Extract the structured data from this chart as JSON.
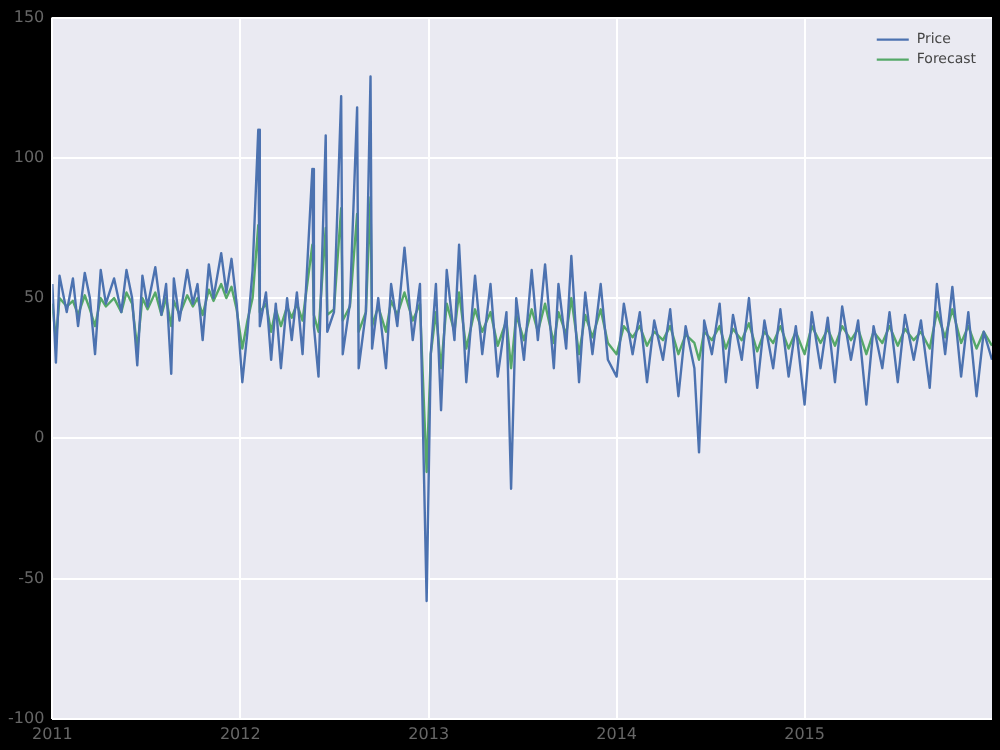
{
  "chart_data": {
    "type": "line",
    "x": [
      "2011-01-01",
      "2011-01-08",
      "2011-01-15",
      "2011-01-29",
      "2011-02-10",
      "2011-02-20",
      "2011-03-05",
      "2011-03-15",
      "2011-03-25",
      "2011-04-05",
      "2011-04-15",
      "2011-05-01",
      "2011-05-15",
      "2011-05-25",
      "2011-06-05",
      "2011-06-15",
      "2011-06-25",
      "2011-07-05",
      "2011-07-20",
      "2011-08-01",
      "2011-08-10",
      "2011-08-20",
      "2011-08-25",
      "2011-09-05",
      "2011-09-20",
      "2011-10-01",
      "2011-10-10",
      "2011-10-20",
      "2011-11-01",
      "2011-11-10",
      "2011-11-25",
      "2011-12-05",
      "2011-12-15",
      "2011-12-25",
      "2012-01-05",
      "2012-01-15",
      "2012-01-25",
      "2012-02-05",
      "2012-02-08",
      "2012-02-20",
      "2012-03-01",
      "2012-03-10",
      "2012-03-20",
      "2012-04-01",
      "2012-04-10",
      "2012-04-20",
      "2012-05-01",
      "2012-05-20",
      "2012-05-23",
      "2012-06-01",
      "2012-06-15",
      "2012-06-18",
      "2012-07-01",
      "2012-07-15",
      "2012-07-18",
      "2012-08-01",
      "2012-08-15",
      "2012-08-18",
      "2012-09-01",
      "2012-09-10",
      "2012-09-13",
      "2012-09-25",
      "2012-10-10",
      "2012-10-20",
      "2012-11-01",
      "2012-11-15",
      "2012-12-01",
      "2012-12-15",
      "2012-12-28",
      "2013-01-05",
      "2013-01-15",
      "2013-01-25",
      "2013-02-05",
      "2013-02-20",
      "2013-03-01",
      "2013-03-15",
      "2013-04-01",
      "2013-04-15",
      "2013-05-01",
      "2013-05-15",
      "2013-06-01",
      "2013-06-10",
      "2013-06-20",
      "2013-07-05",
      "2013-07-20",
      "2013-08-01",
      "2013-08-15",
      "2013-09-01",
      "2013-09-10",
      "2013-09-25",
      "2013-10-05",
      "2013-10-20",
      "2013-11-01",
      "2013-11-15",
      "2013-12-01",
      "2013-12-15",
      "2014-01-01",
      "2014-01-15",
      "2014-02-01",
      "2014-02-15",
      "2014-03-01",
      "2014-03-15",
      "2014-04-01",
      "2014-04-15",
      "2014-05-01",
      "2014-05-15",
      "2014-06-01",
      "2014-06-10",
      "2014-06-20",
      "2014-07-05",
      "2014-07-20",
      "2014-08-01",
      "2014-08-15",
      "2014-09-01",
      "2014-09-15",
      "2014-10-01",
      "2014-10-15",
      "2014-11-01",
      "2014-11-15",
      "2014-12-01",
      "2014-12-15",
      "2015-01-01",
      "2015-01-15",
      "2015-02-01",
      "2015-02-15",
      "2015-03-01",
      "2015-03-15",
      "2015-04-01",
      "2015-04-15",
      "2015-05-01",
      "2015-05-15",
      "2015-06-01",
      "2015-06-15",
      "2015-07-01",
      "2015-07-15",
      "2015-08-01",
      "2015-08-15",
      "2015-09-01",
      "2015-09-15",
      "2015-10-01",
      "2015-10-15",
      "2015-11-01",
      "2015-11-15",
      "2015-12-01",
      "2015-12-15",
      "2015-12-31"
    ],
    "series": [
      {
        "name": "Price",
        "color": "#4c72b0",
        "values": [
          55,
          27,
          58,
          45,
          57,
          40,
          59,
          50,
          30,
          60,
          48,
          57,
          45,
          60,
          50,
          26,
          58,
          47,
          61,
          44,
          55,
          23,
          57,
          42,
          60,
          48,
          55,
          35,
          62,
          50,
          66,
          52,
          64,
          48,
          20,
          38,
          60,
          110,
          40,
          52,
          28,
          48,
          25,
          50,
          35,
          52,
          30,
          96,
          40,
          22,
          108,
          38,
          45,
          122,
          30,
          48,
          118,
          25,
          45,
          129,
          32,
          50,
          25,
          55,
          40,
          68,
          35,
          55,
          -58,
          30,
          55,
          10,
          60,
          35,
          69,
          20,
          58,
          30,
          55,
          22,
          45,
          -18,
          50,
          28,
          60,
          35,
          62,
          25,
          55,
          32,
          65,
          20,
          52,
          30,
          55,
          28,
          22,
          48,
          30,
          45,
          20,
          42,
          28,
          46,
          15,
          40,
          25,
          -5,
          42,
          30,
          48,
          20,
          44,
          28,
          50,
          18,
          42,
          25,
          46,
          22,
          40,
          12,
          45,
          25,
          43,
          20,
          47,
          28,
          42,
          12,
          40,
          25,
          45,
          20,
          44,
          28,
          42,
          18,
          55,
          30,
          54,
          22,
          45,
          15,
          38,
          28
        ]
      },
      {
        "name": "Forecast",
        "color": "#55a868",
        "values": [
          48,
          35,
          50,
          47,
          49,
          44,
          51,
          46,
          40,
          50,
          47,
          50,
          45,
          52,
          48,
          32,
          50,
          46,
          52,
          44,
          50,
          40,
          49,
          44,
          51,
          47,
          50,
          44,
          53,
          49,
          55,
          50,
          54,
          46,
          32,
          42,
          50,
          76,
          45,
          48,
          38,
          46,
          40,
          47,
          43,
          48,
          42,
          69,
          44,
          38,
          75,
          44,
          46,
          82,
          42,
          47,
          80,
          38,
          45,
          86,
          40,
          47,
          38,
          49,
          44,
          52,
          42,
          48,
          -12,
          30,
          45,
          25,
          48,
          38,
          52,
          32,
          46,
          38,
          45,
          33,
          42,
          25,
          44,
          35,
          46,
          38,
          48,
          34,
          45,
          37,
          50,
          30,
          44,
          36,
          46,
          34,
          30,
          40,
          36,
          40,
          33,
          38,
          35,
          40,
          30,
          37,
          34,
          28,
          38,
          35,
          40,
          32,
          39,
          35,
          41,
          31,
          38,
          34,
          40,
          32,
          38,
          30,
          40,
          34,
          39,
          33,
          40,
          35,
          39,
          30,
          38,
          34,
          40,
          33,
          39,
          35,
          38,
          32,
          45,
          36,
          46,
          34,
          40,
          32,
          38,
          33
        ]
      }
    ],
    "xlim": [
      "2011-01-01",
      "2015-12-31"
    ],
    "xticks": [
      {
        "value": "2011-01-01",
        "label": "2011"
      },
      {
        "value": "2012-01-01",
        "label": "2012"
      },
      {
        "value": "2013-01-01",
        "label": "2013"
      },
      {
        "value": "2014-01-01",
        "label": "2014"
      },
      {
        "value": "2015-01-01",
        "label": "2015"
      }
    ],
    "ylim": [
      -100,
      150
    ],
    "yticks": [
      -100,
      -50,
      0,
      50,
      100,
      150
    ],
    "grid": true,
    "legend": "top right",
    "marker": "none",
    "line_style": "solid"
  }
}
